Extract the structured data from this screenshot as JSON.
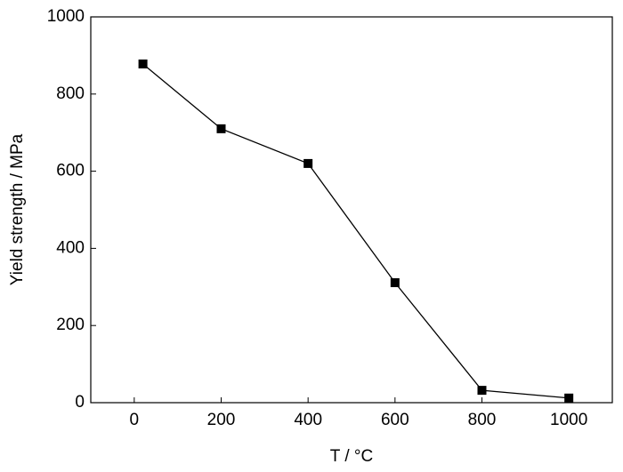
{
  "chart_data": {
    "type": "line",
    "x_label": "T / °C",
    "y_label": "Yield strength / MPa",
    "x": [
      20,
      200,
      400,
      600,
      800,
      1000
    ],
    "series": [
      {
        "color": "#000000",
        "values": [
          878,
          710,
          620,
          311,
          32,
          12
        ]
      }
    ],
    "xlim": [
      -100,
      1100
    ],
    "xticks": [
      0,
      200,
      400,
      600,
      800,
      1000
    ],
    "ylim": [
      0,
      1000
    ],
    "yticks": [
      0,
      200,
      400,
      600,
      800,
      1000
    ],
    "grid": false
  }
}
